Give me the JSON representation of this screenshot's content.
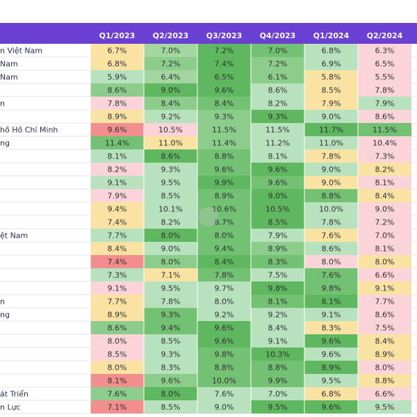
{
  "chart_data": {
    "type": "heatmap",
    "columns": [
      "Q1/2023",
      "Q2/2023",
      "Q3/2023",
      "Q4/2023",
      "Q1/2024",
      "Q2/2024"
    ],
    "rows": [
      {
        "label": "n Việt Nam",
        "values": [
          "6.7%",
          "7.0%",
          "7.2%",
          "7.0%",
          "6.8%",
          "6.3%"
        ]
      },
      {
        "label": "Nam",
        "values": [
          "6.8%",
          "7.2%",
          "7.4%",
          "7.2%",
          "6.9%",
          "6.5%"
        ]
      },
      {
        "label": "Nam",
        "values": [
          "5.9%",
          "6.4%",
          "6.5%",
          "6.1%",
          "5.8%",
          "5.5%"
        ]
      },
      {
        "label": "",
        "values": [
          "8.6%",
          "9.0%",
          "9.6%",
          "8.6%",
          "8.5%",
          "7.8%"
        ]
      },
      {
        "label": "n",
        "values": [
          "7.8%",
          "8.4%",
          "8.4%",
          "8.2%",
          "7.9%",
          "7.9%"
        ]
      },
      {
        "label": "",
        "values": [
          "8.9%",
          "9.2%",
          "9.3%",
          "9.3%",
          "9.0%",
          "8.6%"
        ]
      },
      {
        "label": "hồ Hồ Chí Minh",
        "values": [
          "9.6%",
          "10.5%",
          "11.5%",
          "11.5%",
          "11.7%",
          "11.5%"
        ]
      },
      {
        "label": "ng",
        "values": [
          "11.4%",
          "11.0%",
          "11.4%",
          "11.2%",
          "11.0%",
          "10.4%"
        ]
      },
      {
        "label": "",
        "values": [
          "8.1%",
          "8.6%",
          "8.8%",
          "8.1%",
          "7.8%",
          "7.3%"
        ]
      },
      {
        "label": "",
        "values": [
          "8.2%",
          "9.3%",
          "9.6%",
          "9.6%",
          "9.0%",
          "8.2%"
        ]
      },
      {
        "label": "",
        "values": [
          "9.1%",
          "9.5%",
          "9.9%",
          "9.6%",
          "9.0%",
          "8.1%"
        ]
      },
      {
        "label": "",
        "values": [
          "7.9%",
          "8.5%",
          "8.9%",
          "9.0%",
          "8.8%",
          "8.4%"
        ]
      },
      {
        "label": "",
        "values": [
          "9.4%",
          "10.1%",
          "10.6%",
          "10.5%",
          "10.0%",
          "9.0%"
        ]
      },
      {
        "label": "",
        "values": [
          "7.4%",
          "8.2%",
          "8.7%",
          "8.5%",
          "7.8%",
          "7.2%"
        ]
      },
      {
        "label": "ệt Nam",
        "values": [
          "7.7%",
          "8.0%",
          "8.0%",
          "7.9%",
          "7.6%",
          "7.0%"
        ]
      },
      {
        "label": "",
        "values": [
          "8.4%",
          "9.0%",
          "9.4%",
          "8.9%",
          "8.6%",
          "8.1%"
        ]
      },
      {
        "label": "",
        "values": [
          "7.4%",
          "8.0%",
          "8.4%",
          "8.3%",
          "8.0%",
          "8.0%"
        ]
      },
      {
        "label": "",
        "values": [
          "7.3%",
          "7.1%",
          "7.8%",
          "7.5%",
          "7.6%",
          "6.6%"
        ]
      },
      {
        "label": "",
        "values": [
          "9.1%",
          "9.5%",
          "9.7%",
          "9.8%",
          "9.8%",
          "9.1%"
        ]
      },
      {
        "label": "n",
        "values": [
          "7.7%",
          "7.8%",
          "8.0%",
          "8.1%",
          "8.1%",
          "7.7%"
        ]
      },
      {
        "label": "ng",
        "values": [
          "8.9%",
          "9.3%",
          "9.2%",
          "9.2%",
          "9.1%",
          "8.6%"
        ]
      },
      {
        "label": "",
        "values": [
          "8.6%",
          "9.4%",
          "9.6%",
          "8.4%",
          "8.3%",
          "7.5%"
        ]
      },
      {
        "label": "",
        "values": [
          "8.0%",
          "8.5%",
          "9.6%",
          "9.1%",
          "9.6%",
          "8.4%"
        ]
      },
      {
        "label": "",
        "values": [
          "8.5%",
          "9.3%",
          "9.8%",
          "10.3%",
          "9.6%",
          "8.9%"
        ]
      },
      {
        "label": "",
        "values": [
          "8.0%",
          "8.3%",
          "8.8%",
          "8.8%",
          "8.9%",
          "8.0%"
        ]
      },
      {
        "label": "",
        "values": [
          "8.1%",
          "9.6%",
          "10.0%",
          "9.9%",
          "9.5%",
          "8.8%"
        ]
      },
      {
        "label": "át Triển",
        "values": [
          "7.6%",
          "8.0%",
          "7.6%",
          "7.0%",
          "6.8%",
          "6.6%"
        ]
      },
      {
        "label": "n Lực",
        "values": [
          "7.1%",
          "8.5%",
          "9.0%",
          "9.5%",
          "9.6%",
          "9.5%"
        ]
      }
    ],
    "cell_colors": [
      [
        "#fae2a2",
        "#a4d6a1",
        "#5fb85f",
        "#73c173",
        "#b8e2bd",
        "#fad4d9"
      ],
      [
        "#fae2a2",
        "#8ccd8c",
        "#5fb85f",
        "#8ccd8c",
        "#b8e2bd",
        "#fad4d9"
      ],
      [
        "#b8e2bd",
        "#a4d6a1",
        "#5fb85f",
        "#8ccd8c",
        "#fae2a2",
        "#fad4d9"
      ],
      [
        "#8ccd8c",
        "#5fb85f",
        "#5fb85f",
        "#b8e2bd",
        "#fae2a2",
        "#fad4d9"
      ],
      [
        "#fad4d9",
        "#8ccd8c",
        "#73c173",
        "#b8e2bd",
        "#fae2a2",
        "#b8e2bd"
      ],
      [
        "#fae2a2",
        "#b8e2bd",
        "#8ccd8c",
        "#5fb85f",
        "#b8e2bd",
        "#fad4d9"
      ],
      [
        "#f28e8e",
        "#fad4d9",
        "#8ccd8c",
        "#b8e2bd",
        "#5fb85f",
        "#73c173"
      ],
      [
        "#73c173",
        "#fae2a2",
        "#8ccd8c",
        "#b8e2bd",
        "#b8e2bd",
        "#fad4d9"
      ],
      [
        "#b8e2bd",
        "#5fb85f",
        "#73c173",
        "#b8e2bd",
        "#fae2a2",
        "#fad4d9"
      ],
      [
        "#fad4d9",
        "#b8e2bd",
        "#73c173",
        "#5fb85f",
        "#b8e2bd",
        "#fae2a2"
      ],
      [
        "#b8e2bd",
        "#b8e2bd",
        "#5fb85f",
        "#73c173",
        "#fae2a2",
        "#fad4d9"
      ],
      [
        "#fad4d9",
        "#b8e2bd",
        "#73c173",
        "#5fb85f",
        "#73c173",
        "#fae2a2"
      ],
      [
        "#fae2a2",
        "#b8e2bd",
        "#73c173",
        "#5fb85f",
        "#b8e2bd",
        "#fad4d9"
      ],
      [
        "#fae2a2",
        "#b8e2bd",
        "#73c173",
        "#5fb85f",
        "#b8e2bd",
        "#fad4d9"
      ],
      [
        "#b8e2bd",
        "#5fb85f",
        "#73c173",
        "#b8e2bd",
        "#fae2a2",
        "#fad4d9"
      ],
      [
        "#fae2a2",
        "#b8e2bd",
        "#73c173",
        "#8ccd8c",
        "#b8e2bd",
        "#fad4d9"
      ],
      [
        "#f28e8e",
        "#8ccd8c",
        "#5fb85f",
        "#73c173",
        "#fad4d9",
        "#fae2a2"
      ],
      [
        "#b8e2bd",
        "#fae2a2",
        "#73c173",
        "#b8e2bd",
        "#73c173",
        "#fad4d9"
      ],
      [
        "#fad4d9",
        "#b8e2bd",
        "#b8e2bd",
        "#5fb85f",
        "#73c173",
        "#fae2a2"
      ],
      [
        "#fae2a2",
        "#b8e2bd",
        "#b8e2bd",
        "#73c173",
        "#5fb85f",
        "#fad4d9"
      ],
      [
        "#fae2a2",
        "#73c173",
        "#b8e2bd",
        "#b8e2bd",
        "#b8e2bd",
        "#fad4d9"
      ],
      [
        "#8ccd8c",
        "#73c173",
        "#5fb85f",
        "#b8e2bd",
        "#fae2a2",
        "#fad4d9"
      ],
      [
        "#fad4d9",
        "#b8e2bd",
        "#5fb85f",
        "#b8e2bd",
        "#5fb85f",
        "#fae2a2"
      ],
      [
        "#fad4d9",
        "#b8e2bd",
        "#73c173",
        "#5fb85f",
        "#b8e2bd",
        "#fae2a2"
      ],
      [
        "#fae2a2",
        "#b8e2bd",
        "#73c173",
        "#73c173",
        "#5fb85f",
        "#fad4d9"
      ],
      [
        "#f28e8e",
        "#8ccd8c",
        "#73c173",
        "#73c173",
        "#b8e2bd",
        "#fae2a2"
      ],
      [
        "#8ccd8c",
        "#5fb85f",
        "#b8e2bd",
        "#b8e2bd",
        "#fae2a2",
        "#fad4d9"
      ],
      [
        "#f28e8e",
        "#b8e2bd",
        "#b8e2bd",
        "#5fb85f",
        "#5fb85f",
        "#b8e2bd"
      ]
    ]
  },
  "colors": {
    "header": "#6a3fd3",
    "header_text": "#ffffff",
    "bank_text": "#2b2f56",
    "cell_text": "#2f3033"
  }
}
